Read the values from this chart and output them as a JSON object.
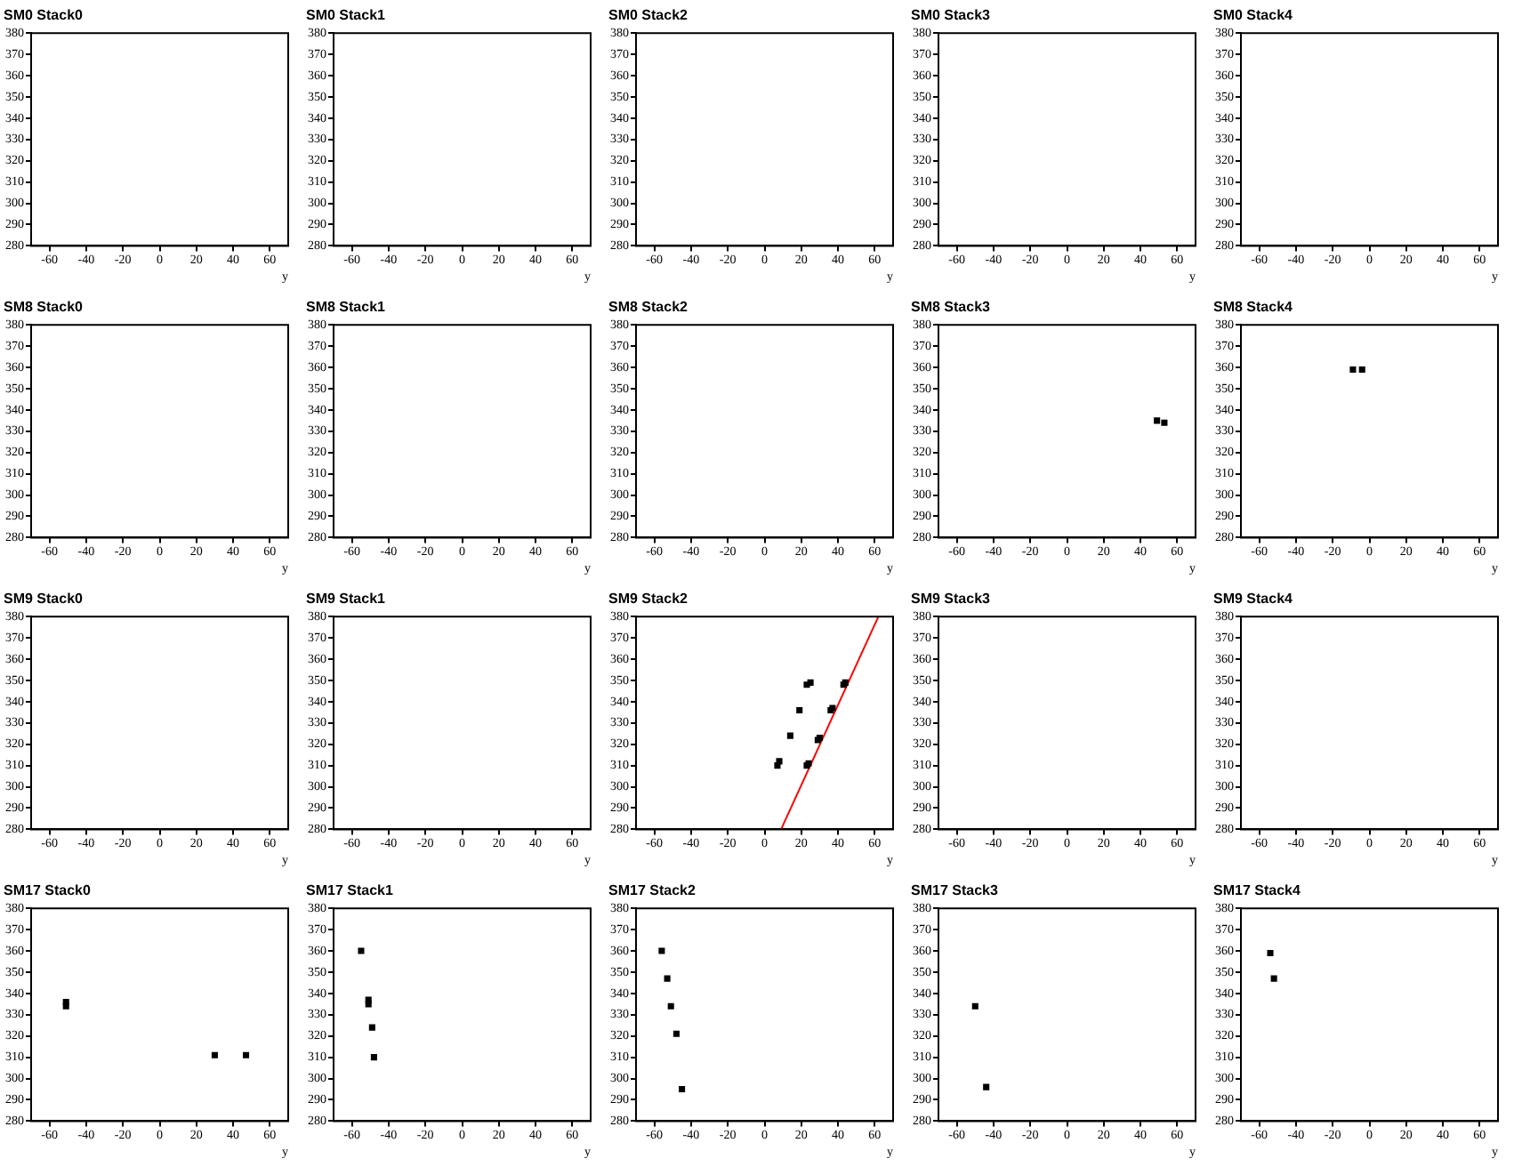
{
  "chart_data": [
    {
      "type": "scatter",
      "title": "SM0 Stack0",
      "xlabel": "y",
      "xlim": [
        -70,
        70
      ],
      "xticks": [
        -60,
        -40,
        -20,
        0,
        20,
        40,
        60
      ],
      "ylim": [
        280,
        380
      ],
      "yticks": [
        280,
        290,
        300,
        310,
        320,
        330,
        340,
        350,
        360,
        370,
        380
      ]
    },
    {
      "type": "scatter",
      "title": "SM0 Stack1",
      "xlabel": "y",
      "xlim": [
        -70,
        70
      ],
      "xticks": [
        -60,
        -40,
        -20,
        0,
        20,
        40,
        60
      ],
      "ylim": [
        280,
        380
      ],
      "yticks": [
        280,
        290,
        300,
        310,
        320,
        330,
        340,
        350,
        360,
        370,
        380
      ]
    },
    {
      "type": "scatter",
      "title": "SM0 Stack2",
      "xlabel": "y",
      "xlim": [
        -70,
        70
      ],
      "xticks": [
        -60,
        -40,
        -20,
        0,
        20,
        40,
        60
      ],
      "ylim": [
        280,
        380
      ],
      "yticks": [
        280,
        290,
        300,
        310,
        320,
        330,
        340,
        350,
        360,
        370,
        380
      ]
    },
    {
      "type": "scatter",
      "title": "SM0 Stack3",
      "xlabel": "y",
      "xlim": [
        -70,
        70
      ],
      "xticks": [
        -60,
        -40,
        -20,
        0,
        20,
        40,
        60
      ],
      "ylim": [
        280,
        380
      ],
      "yticks": [
        280,
        290,
        300,
        310,
        320,
        330,
        340,
        350,
        360,
        370,
        380
      ]
    },
    {
      "type": "scatter",
      "title": "SM0 Stack4",
      "xlabel": "y",
      "xlim": [
        -70,
        70
      ],
      "xticks": [
        -60,
        -40,
        -20,
        0,
        20,
        40,
        60
      ],
      "ylim": [
        280,
        380
      ],
      "yticks": [
        280,
        290,
        300,
        310,
        320,
        330,
        340,
        350,
        360,
        370,
        380
      ]
    },
    {
      "type": "scatter",
      "title": "SM8 Stack0",
      "xlabel": "y",
      "xlim": [
        -70,
        70
      ],
      "xticks": [
        -60,
        -40,
        -20,
        0,
        20,
        40,
        60
      ],
      "ylim": [
        280,
        380
      ],
      "yticks": [
        280,
        290,
        300,
        310,
        320,
        330,
        340,
        350,
        360,
        370,
        380
      ]
    },
    {
      "type": "scatter",
      "title": "SM8 Stack1",
      "xlabel": "y",
      "xlim": [
        -70,
        70
      ],
      "xticks": [
        -60,
        -40,
        -20,
        0,
        20,
        40,
        60
      ],
      "ylim": [
        280,
        380
      ],
      "yticks": [
        280,
        290,
        300,
        310,
        320,
        330,
        340,
        350,
        360,
        370,
        380
      ]
    },
    {
      "type": "scatter",
      "title": "SM8 Stack2",
      "xlabel": "y",
      "xlim": [
        -70,
        70
      ],
      "xticks": [
        -60,
        -40,
        -20,
        0,
        20,
        40,
        60
      ],
      "ylim": [
        280,
        380
      ],
      "yticks": [
        280,
        290,
        300,
        310,
        320,
        330,
        340,
        350,
        360,
        370,
        380
      ]
    },
    {
      "type": "scatter",
      "title": "SM8 Stack3",
      "xlabel": "y",
      "xlim": [
        -70,
        70
      ],
      "xticks": [
        -60,
        -40,
        -20,
        0,
        20,
        40,
        60
      ],
      "ylim": [
        280,
        380
      ],
      "yticks": [
        280,
        290,
        300,
        310,
        320,
        330,
        340,
        350,
        360,
        370,
        380
      ],
      "marker": "square",
      "series": [
        {
          "color": "#000000",
          "x": [
            49,
            53
          ],
          "values": [
            335,
            334
          ]
        }
      ]
    },
    {
      "type": "scatter",
      "title": "SM8 Stack4",
      "xlabel": "y",
      "xlim": [
        -70,
        70
      ],
      "xticks": [
        -60,
        -40,
        -20,
        0,
        20,
        40,
        60
      ],
      "ylim": [
        280,
        380
      ],
      "yticks": [
        280,
        290,
        300,
        310,
        320,
        330,
        340,
        350,
        360,
        370,
        380
      ],
      "marker": "square",
      "series": [
        {
          "color": "#000000",
          "x": [
            -9,
            -4
          ],
          "values": [
            359,
            359
          ]
        }
      ]
    },
    {
      "type": "scatter",
      "title": "SM9 Stack0",
      "xlabel": "y",
      "xlim": [
        -70,
        70
      ],
      "xticks": [
        -60,
        -40,
        -20,
        0,
        20,
        40,
        60
      ],
      "ylim": [
        280,
        380
      ],
      "yticks": [
        280,
        290,
        300,
        310,
        320,
        330,
        340,
        350,
        360,
        370,
        380
      ]
    },
    {
      "type": "scatter",
      "title": "SM9 Stack1",
      "xlabel": "y",
      "xlim": [
        -70,
        70
      ],
      "xticks": [
        -60,
        -40,
        -20,
        0,
        20,
        40,
        60
      ],
      "ylim": [
        280,
        380
      ],
      "yticks": [
        280,
        290,
        300,
        310,
        320,
        330,
        340,
        350,
        360,
        370,
        380
      ]
    },
    {
      "type": "scatter",
      "title": "SM9 Stack2",
      "xlabel": "y",
      "xlim": [
        -70,
        70
      ],
      "xticks": [
        -60,
        -40,
        -20,
        0,
        20,
        40,
        60
      ],
      "ylim": [
        280,
        380
      ],
      "yticks": [
        280,
        290,
        300,
        310,
        320,
        330,
        340,
        350,
        360,
        370,
        380
      ],
      "series": [
        {
          "color": "#000000",
          "marker": "square",
          "x": [
            7,
            8,
            14,
            19,
            23,
            25,
            29,
            30,
            23,
            24,
            36,
            37,
            43,
            44
          ],
          "values": [
            310,
            312,
            324,
            336,
            348,
            349,
            322,
            323,
            310,
            311,
            336,
            337,
            348,
            349
          ]
        },
        {
          "type": "line",
          "color": "#ff0000",
          "x": [
            9,
            62
          ],
          "values": [
            280,
            380
          ]
        }
      ]
    },
    {
      "type": "scatter",
      "title": "SM9 Stack3",
      "xlabel": "y",
      "xlim": [
        -70,
        70
      ],
      "xticks": [
        -60,
        -40,
        -20,
        0,
        20,
        40,
        60
      ],
      "ylim": [
        280,
        380
      ],
      "yticks": [
        280,
        290,
        300,
        310,
        320,
        330,
        340,
        350,
        360,
        370,
        380
      ]
    },
    {
      "type": "scatter",
      "title": "SM9 Stack4",
      "xlabel": "y",
      "xlim": [
        -70,
        70
      ],
      "xticks": [
        -60,
        -40,
        -20,
        0,
        20,
        40,
        60
      ],
      "ylim": [
        280,
        380
      ],
      "yticks": [
        280,
        290,
        300,
        310,
        320,
        330,
        340,
        350,
        360,
        370,
        380
      ]
    },
    {
      "type": "scatter",
      "title": "SM17 Stack0",
      "xlabel": "y",
      "xlim": [
        -70,
        70
      ],
      "xticks": [
        -60,
        -40,
        -20,
        0,
        20,
        40,
        60
      ],
      "ylim": [
        280,
        380
      ],
      "yticks": [
        280,
        290,
        300,
        310,
        320,
        330,
        340,
        350,
        360,
        370,
        380
      ],
      "marker": "square",
      "series": [
        {
          "color": "#000000",
          "x": [
            -51,
            -51,
            30,
            47
          ],
          "values": [
            336,
            334,
            311,
            311
          ]
        }
      ]
    },
    {
      "type": "scatter",
      "title": "SM17 Stack1",
      "xlabel": "y",
      "xlim": [
        -70,
        70
      ],
      "xticks": [
        -60,
        -40,
        -20,
        0,
        20,
        40,
        60
      ],
      "ylim": [
        280,
        380
      ],
      "yticks": [
        280,
        290,
        300,
        310,
        320,
        330,
        340,
        350,
        360,
        370,
        380
      ],
      "marker": "square",
      "series": [
        {
          "color": "#000000",
          "x": [
            -55,
            -51,
            -51,
            -49,
            -48
          ],
          "values": [
            360,
            337,
            335,
            324,
            310
          ]
        }
      ]
    },
    {
      "type": "scatter",
      "title": "SM17 Stack2",
      "xlabel": "y",
      "xlim": [
        -70,
        70
      ],
      "xticks": [
        -60,
        -40,
        -20,
        0,
        20,
        40,
        60
      ],
      "ylim": [
        280,
        380
      ],
      "yticks": [
        280,
        290,
        300,
        310,
        320,
        330,
        340,
        350,
        360,
        370,
        380
      ],
      "marker": "square",
      "series": [
        {
          "color": "#000000",
          "x": [
            -56,
            -53,
            -51,
            -48,
            -45
          ],
          "values": [
            360,
            347,
            334,
            321,
            295
          ]
        }
      ]
    },
    {
      "type": "scatter",
      "title": "SM17 Stack3",
      "xlabel": "y",
      "xlim": [
        -70,
        70
      ],
      "xticks": [
        -60,
        -40,
        -20,
        0,
        20,
        40,
        60
      ],
      "ylim": [
        280,
        380
      ],
      "yticks": [
        280,
        290,
        300,
        310,
        320,
        330,
        340,
        350,
        360,
        370,
        380
      ],
      "marker": "square",
      "series": [
        {
          "color": "#000000",
          "x": [
            -50,
            -44
          ],
          "values": [
            334,
            296
          ]
        }
      ]
    },
    {
      "type": "scatter",
      "title": "SM17 Stack4",
      "xlabel": "y",
      "xlim": [
        -70,
        70
      ],
      "xticks": [
        -60,
        -40,
        -20,
        0,
        20,
        40,
        60
      ],
      "ylim": [
        280,
        380
      ],
      "yticks": [
        280,
        290,
        300,
        310,
        320,
        330,
        340,
        350,
        360,
        370,
        380
      ],
      "marker": "square",
      "series": [
        {
          "color": "#000000",
          "x": [
            -54,
            -52
          ],
          "values": [
            359,
            347
          ]
        }
      ]
    }
  ]
}
